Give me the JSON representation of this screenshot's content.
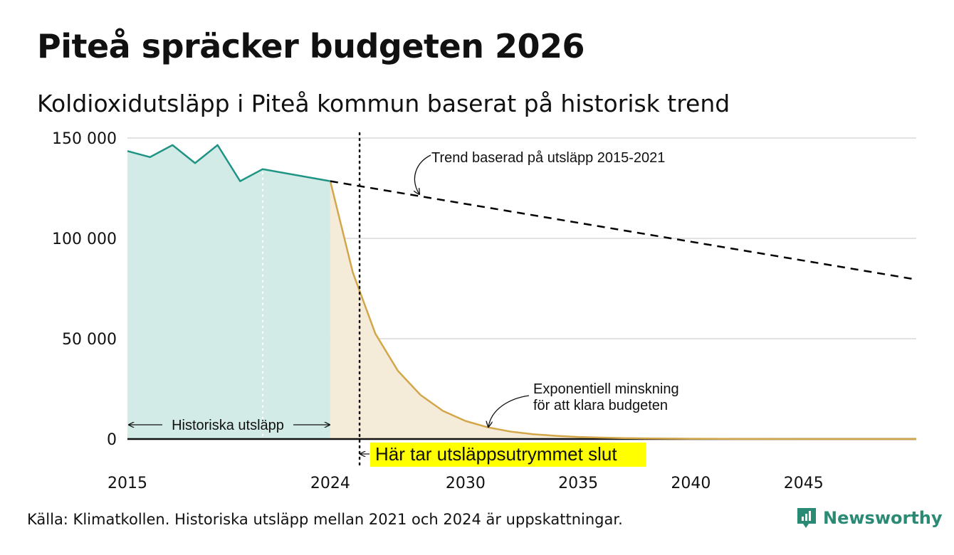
{
  "title": "Piteå spräcker budgeten 2026",
  "subtitle": "Koldioxidutsläpp i Piteå kommun baserat på historisk trend",
  "source": "Källa: Klimatkollen. Historiska utsläpp mellan 2021 och 2024 är uppskattningar.",
  "brand": "Newsworthy",
  "colors": {
    "historical_line": "#1f9484",
    "historical_fill": "#d2ebe6",
    "budget_line": "#d4a64a",
    "budget_fill": "#f5ebd9",
    "trend_line": "#000000",
    "highlight": "#ffff00",
    "grid": "#d9d9d9"
  },
  "chart_data": {
    "type": "line",
    "title": "Piteå spräcker budgeten 2026",
    "subtitle": "Koldioxidutsläpp i Piteå kommun baserat på historisk trend",
    "xlabel": "",
    "ylabel": "",
    "xlim": [
      2015,
      2050
    ],
    "ylim": [
      0,
      150000
    ],
    "x_ticks": [
      2015,
      2024,
      2030,
      2035,
      2040,
      2045
    ],
    "x_tick_labels": [
      "2015",
      "2024",
      "2030",
      "2035",
      "2040",
      "2045"
    ],
    "y_ticks": [
      0,
      50000,
      100000,
      150000
    ],
    "y_tick_labels": [
      "0",
      "50 000",
      "100 000",
      "150 000"
    ],
    "grid": true,
    "series": [
      {
        "name": "",
        "style": "solid-area",
        "x": [
          2015,
          2016,
          2017,
          2018,
          2019,
          2020,
          2021,
          2024
        ],
        "y": [
          143500,
          140500,
          146500,
          137500,
          146500,
          128500,
          134500,
          128500
        ]
      },
      {
        "name": "",
        "style": "solid-area",
        "x": [
          2024,
          2025,
          2026,
          2027,
          2028,
          2029,
          2030,
          2031,
          2032,
          2033,
          2034,
          2035,
          2036,
          2037,
          2038,
          2040,
          2042,
          2045,
          2050
        ],
        "y": [
          128500,
          83000,
          52500,
          34000,
          22000,
          14000,
          9000,
          5800,
          3700,
          2400,
          1600,
          1000,
          700,
          450,
          300,
          130,
          50,
          10,
          0
        ]
      },
      {
        "name": "",
        "style": "dashed",
        "x": [
          2024,
          2050
        ],
        "y": [
          128500,
          79500
        ]
      }
    ],
    "budget_end_year": 2025.3,
    "annotations": {
      "trend": "Trend baserad på utsläpp 2015-2021",
      "exponential_line1": "Exponentiell minskning",
      "exponential_line2": "för att klara budgeten",
      "historical": "Historiska utsläpp",
      "budget_end": "Här tar utsläppsutrymmet slut"
    }
  }
}
